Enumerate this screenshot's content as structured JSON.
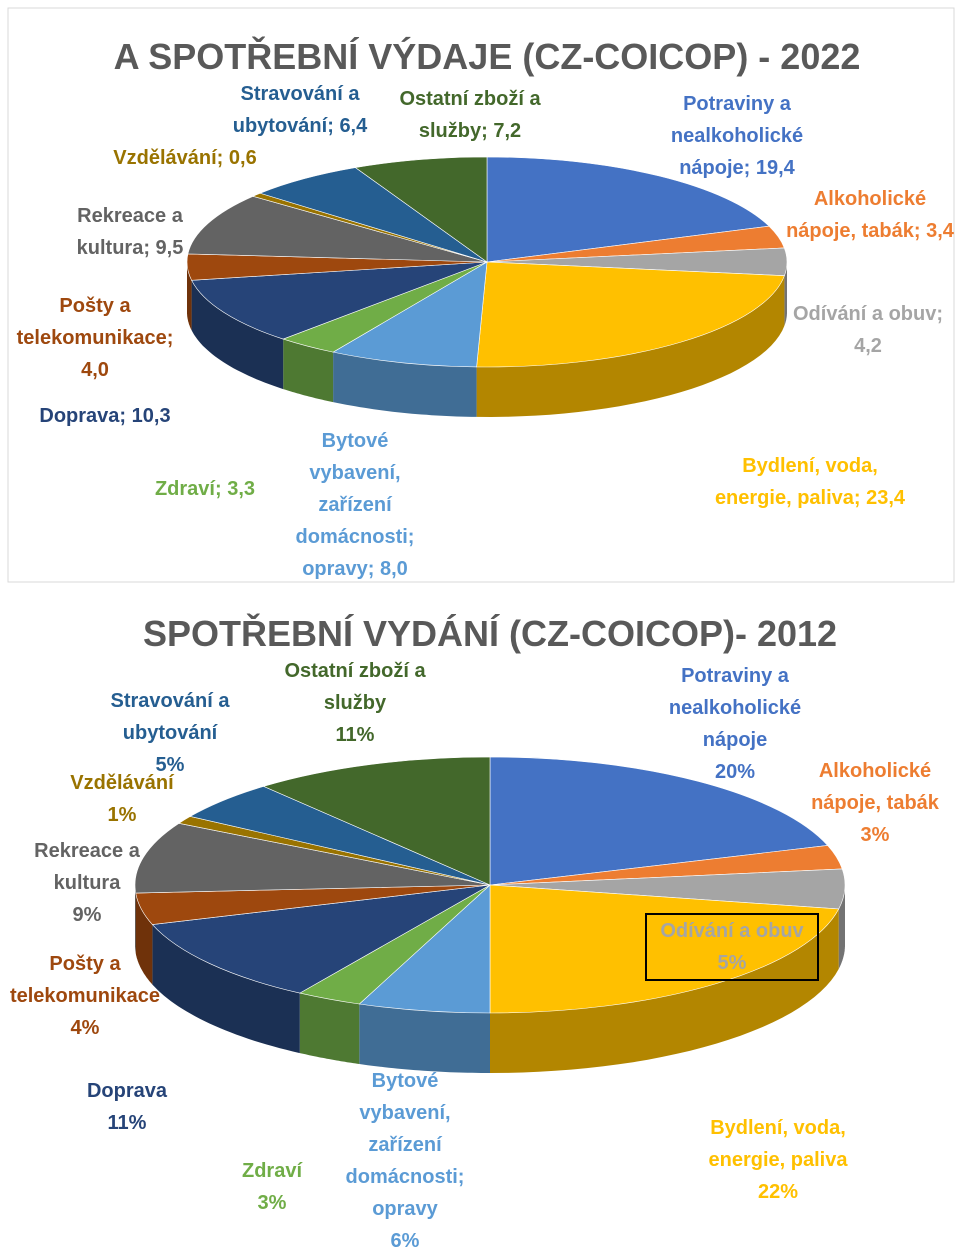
{
  "chart_data": [
    {
      "type": "pie3d",
      "title": "A SPOTŘEBNÍ VÝDAJE (CZ-COICOP) - 2022",
      "categories": [
        "Potraviny a nealkoholické nápoje;",
        "Alkoholické nápoje, tabák;",
        "Odívání a obuv;",
        "Bydlení, voda, energie, paliva;",
        "Bytové vybavení, zařízení domácnosti; opravy;",
        "Zdraví;",
        "Doprava;",
        "Pošty a telekomunikace;",
        "Rekreace a kultura;",
        "Vzdělávání;",
        "Stravování a ubytování;",
        "Ostatní zboží a služby;"
      ],
      "values": [
        19.4,
        3.4,
        4.2,
        23.4,
        8.0,
        3.3,
        10.3,
        4.0,
        9.5,
        0.6,
        6.4,
        7.2
      ],
      "value_labels": [
        "19,4",
        "3,4",
        "4,2",
        "23,4",
        "8,0",
        "3,3",
        "10,3",
        "4,0",
        "9,5",
        "0,6",
        "6,4",
        "7,2"
      ],
      "colors": [
        "#4472c4",
        "#ed7d31",
        "#a5a5a5",
        "#ffc000",
        "#5b9bd5",
        "#70ad47",
        "#264478",
        "#9e480e",
        "#636363",
        "#997300",
        "#255e91",
        "#43682b"
      ]
    },
    {
      "type": "pie3d",
      "title": "SPOTŘEBNÍ VYDÁNÍ (CZ-COICOP)- 2012",
      "categories": [
        "Potraviny a nealkoholické nápoje",
        "Alkoholické nápoje, tabák",
        "Odívání a obuv",
        "Bydlení, voda, energie, paliva",
        "Bytové vybavení, zařízení domácnosti; opravy",
        "Zdraví",
        "Doprava",
        "Pošty a telekomunikace",
        "Rekreace a kultura",
        "Vzdělávání",
        "Stravování a ubytování",
        "Ostatní zboží a služby"
      ],
      "values": [
        20,
        3,
        5,
        22,
        6,
        3,
        11,
        4,
        9,
        1,
        5,
        11
      ],
      "value_labels": [
        "20%",
        "3%",
        "5%",
        "22%",
        "6%",
        "3%",
        "11%",
        "4%",
        "9%",
        "1%",
        "5%",
        "11%"
      ],
      "colors": [
        "#4472c4",
        "#ed7d31",
        "#a5a5a5",
        "#ffc000",
        "#5b9bd5",
        "#70ad47",
        "#264478",
        "#9e480e",
        "#636363",
        "#997300",
        "#255e91",
        "#43682b"
      ]
    }
  ]
}
